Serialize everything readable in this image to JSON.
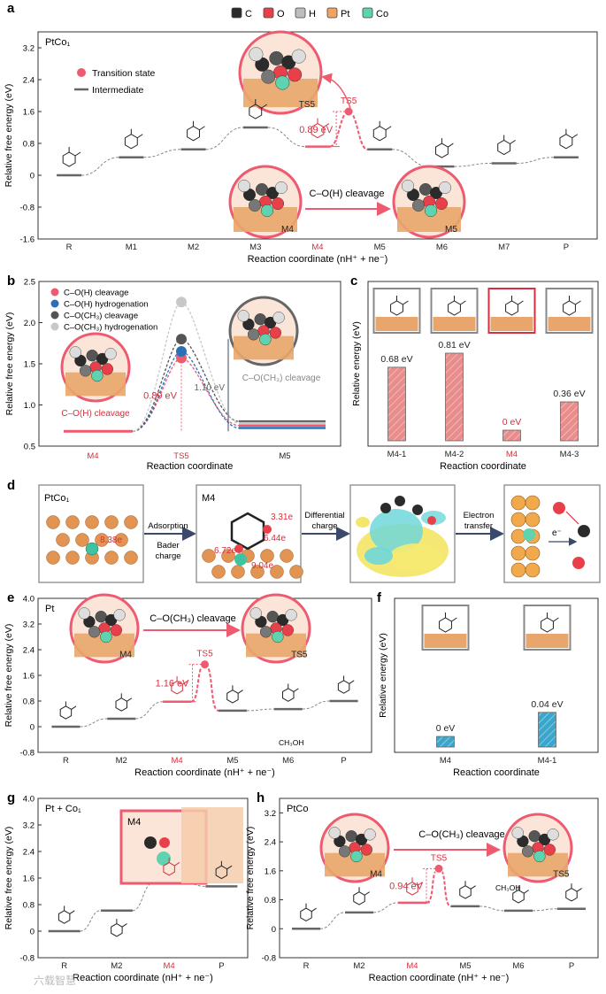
{
  "legend": {
    "items": [
      {
        "label": "C",
        "color": "#2b2b2b"
      },
      {
        "label": "O",
        "color": "#e8404a"
      },
      {
        "label": "H",
        "color": "#bdbdbd"
      },
      {
        "label": "Pt",
        "color": "#f2a361"
      },
      {
        "label": "Co",
        "color": "#5fd3b0"
      }
    ]
  },
  "panels": {
    "a": {
      "letter": "a",
      "catalyst": "PtCo₁"
    },
    "b": {
      "letter": "b"
    },
    "c": {
      "letter": "c"
    },
    "d": {
      "letter": "d",
      "catalyst": "PtCo₁",
      "m4_label": "M4",
      "charges": [
        "8.38e",
        "3.31e",
        "6.44e",
        "6.72e",
        "9.04e"
      ],
      "arrows": [
        "Adsorption",
        "Bader",
        "charge",
        "Differential",
        "charge",
        "Electron",
        "transfer"
      ],
      "electron": "e⁻"
    },
    "e": {
      "letter": "e",
      "catalyst": "Pt"
    },
    "f": {
      "letter": "f"
    },
    "g": {
      "letter": "g",
      "catalyst": "Pt + Co₁"
    },
    "h": {
      "letter": "h",
      "catalyst": "PtCo"
    }
  },
  "watermark": "六载智慧",
  "chart_data": [
    {
      "id": "a",
      "type": "line",
      "title": "PtCo₁",
      "xlabel": "Reaction coordinate (nH⁺ + ne⁻)",
      "ylabel": "Relative free energy (eV)",
      "ylim": [
        -1.6,
        3.6
      ],
      "yticks": [
        "3.2",
        "2.4",
        "1.6",
        "0.8",
        "0",
        "-0.8",
        "-1.6"
      ],
      "categories": [
        "R",
        "M1",
        "M2",
        "M3",
        "M4",
        "M5",
        "M6",
        "M7",
        "P"
      ],
      "highlight": [
        "M4"
      ],
      "values": [
        0,
        0.45,
        0.65,
        1.2,
        0.72,
        0.65,
        0.22,
        0.3,
        0.45
      ],
      "ts": {
        "label": "TS5",
        "value": 1.6,
        "barrier": "0.89 eV"
      },
      "legend": [
        "Transition state",
        "Intermediate"
      ],
      "annotations": [
        "C–O(H) cleavage",
        "TS5",
        "M4",
        "M5"
      ]
    },
    {
      "id": "b",
      "type": "line",
      "xlabel": "Reaction coordinate",
      "ylabel": "Relative free energy (eV)",
      "ylim": [
        0.5,
        2.5
      ],
      "yticks": [
        "2.5",
        "2.0",
        "1.5",
        "1.0",
        "0.5"
      ],
      "categories": [
        "M4",
        "TS5",
        "M5"
      ],
      "series": [
        {
          "name": "C–O(H) cleavage",
          "color": "#ee5a6f",
          "values": [
            0.68,
            1.57,
            0.75
          ]
        },
        {
          "name": "C–O(H) hydrogenation",
          "color": "#2c6fb7",
          "values": [
            0.68,
            1.65,
            0.72
          ]
        },
        {
          "name": "C–O(CH₃) cleavage",
          "color": "#555555",
          "values": [
            0.68,
            1.8,
            0.8
          ]
        },
        {
          "name": "C–O(CH₃) hydrogenation",
          "color": "#c8c8c8",
          "values": [
            0.68,
            2.25,
            0.78
          ]
        }
      ],
      "annotations": [
        "0.89 eV",
        "1.10 eV",
        "C–O(H) cleavage",
        "C–O(CH₃) cleavage"
      ]
    },
    {
      "id": "c",
      "type": "bar",
      "xlabel": "Reaction coordinate",
      "ylabel": "Relative energy (eV)",
      "categories": [
        "M4-1",
        "M4-2",
        "M4",
        "M4-3"
      ],
      "values": [
        0.68,
        0.81,
        0,
        0.36
      ],
      "labels": [
        "0.68 eV",
        "0.81 eV",
        "0 eV",
        "0.36 eV"
      ],
      "highlight": [
        "M4"
      ],
      "ylim": [
        0,
        0.9
      ]
    },
    {
      "id": "e",
      "type": "line",
      "title": "Pt",
      "xlabel": "Reaction coordinate (nH⁺ + ne⁻)",
      "ylabel": "Relative free energy (eV)",
      "ylim": [
        -0.8,
        4.0
      ],
      "yticks": [
        "4.0",
        "3.2",
        "2.4",
        "1.6",
        "0.8",
        "0",
        "-0.8"
      ],
      "categories": [
        "R",
        "M2",
        "M4",
        "M5",
        "M6",
        "P"
      ],
      "highlight": [
        "M4"
      ],
      "values": [
        0,
        0.25,
        0.78,
        0.5,
        0.55,
        0.8
      ],
      "ts": {
        "label": "TS5",
        "value": 1.94,
        "barrier": "1.16 eV"
      },
      "annotations": [
        "C–O(CH₃) cleavage",
        "TS5",
        "M4",
        "CH₃OH"
      ]
    },
    {
      "id": "f",
      "type": "bar",
      "xlabel": "Reaction coordinate",
      "ylabel": "Relative energy (eV)",
      "categories": [
        "M4",
        "M4-1"
      ],
      "values": [
        0,
        0.04
      ],
      "labels": [
        "0 eV",
        "0.04 eV"
      ],
      "ylim": [
        0,
        0.1
      ]
    },
    {
      "id": "g",
      "type": "line",
      "title": "Pt + Co₁",
      "xlabel": "Reaction coordinate (nH⁺ + ne⁻)",
      "ylabel": "Relative free energy (eV)",
      "ylim": [
        -0.8,
        4.0
      ],
      "yticks": [
        "4.0",
        "3.2",
        "2.4",
        "1.6",
        "0.8",
        "0",
        "-0.8"
      ],
      "categories": [
        "R",
        "M2",
        "M4",
        "P"
      ],
      "highlight": [
        "M4"
      ],
      "values": [
        0,
        0.62,
        1.45,
        1.35
      ],
      "annotations": [
        "M4"
      ]
    },
    {
      "id": "h",
      "type": "line",
      "title": "PtCo",
      "xlabel": "Reaction coordinate (nH⁺ + ne⁻)",
      "ylabel": "Relative free energy (eV)",
      "ylim": [
        -0.8,
        3.6
      ],
      "yticks": [
        "3.2",
        "2.4",
        "1.6",
        "0.8",
        "0",
        "-0.8"
      ],
      "categories": [
        "R",
        "M2",
        "M4",
        "M5",
        "M6",
        "P"
      ],
      "highlight": [
        "M4"
      ],
      "values": [
        0,
        0.45,
        0.72,
        0.62,
        0.5,
        0.55
      ],
      "ts": {
        "label": "TS5",
        "value": 1.66,
        "barrier": "0.94 eV"
      },
      "annotations": [
        "C–O(CH₃) cleavage",
        "TS5",
        "M4",
        "CH₃OH"
      ]
    }
  ]
}
